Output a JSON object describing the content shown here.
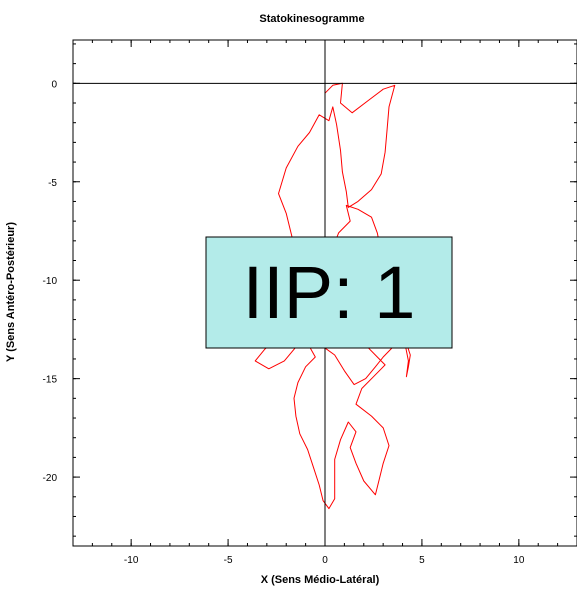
{
  "chart_data": {
    "type": "line",
    "title": "Statokinesogramme",
    "xlabel": "X (Sens Médio-Latéral)",
    "ylabel": "Y (Sens Antéro-Postérieur)",
    "xlim": [
      -13,
      13
    ],
    "ylim": [
      -23.5,
      2.2
    ],
    "xticks": [
      -10,
      -5,
      0,
      5,
      10
    ],
    "yticks": [
      0,
      -5,
      -10,
      -15,
      -20
    ],
    "grid": false,
    "crosshair": {
      "x": 0,
      "y": 0
    },
    "series": [
      {
        "color": "#ff0000",
        "points": [
          [
            0.0,
            -0.5
          ],
          [
            0.4,
            -0.1
          ],
          [
            0.9,
            0.0
          ],
          [
            0.8,
            -1.0
          ],
          [
            1.4,
            -1.5
          ],
          [
            2.2,
            -0.9
          ],
          [
            3.0,
            -0.3
          ],
          [
            3.6,
            -0.1
          ],
          [
            3.3,
            -1.2
          ],
          [
            3.2,
            -2.4
          ],
          [
            3.1,
            -3.5
          ],
          [
            2.9,
            -4.6
          ],
          [
            2.4,
            -5.4
          ],
          [
            1.7,
            -6.0
          ],
          [
            1.2,
            -6.3
          ],
          [
            1.1,
            -5.5
          ],
          [
            0.9,
            -4.5
          ],
          [
            0.8,
            -3.4
          ],
          [
            0.6,
            -2.1
          ],
          [
            0.4,
            -1.2
          ],
          [
            0.2,
            -1.9
          ],
          [
            -0.3,
            -1.6
          ],
          [
            -0.8,
            -2.5
          ],
          [
            -1.4,
            -3.2
          ],
          [
            -2.0,
            -4.3
          ],
          [
            -2.4,
            -5.6
          ],
          [
            -2.0,
            -6.6
          ],
          [
            -1.7,
            -7.8
          ],
          [
            -1.4,
            -8.8
          ],
          [
            -0.5,
            -9.3
          ],
          [
            0.3,
            -8.6
          ],
          [
            0.7,
            -7.6
          ],
          [
            1.3,
            -7.0
          ],
          [
            1.1,
            -6.2
          ],
          [
            1.7,
            -6.4
          ],
          [
            2.4,
            -6.8
          ],
          [
            2.7,
            -7.6
          ],
          [
            2.9,
            -8.6
          ],
          [
            3.3,
            -9.4
          ],
          [
            3.0,
            -10.2
          ],
          [
            2.6,
            -10.9
          ],
          [
            2.2,
            -11.3
          ],
          [
            1.9,
            -12.1
          ],
          [
            1.5,
            -12.8
          ],
          [
            2.1,
            -13.3
          ],
          [
            2.7,
            -13.9
          ],
          [
            3.1,
            -14.3
          ],
          [
            2.5,
            -14.9
          ],
          [
            1.9,
            -15.5
          ],
          [
            1.6,
            -16.3
          ],
          [
            2.4,
            -16.9
          ],
          [
            3.0,
            -17.5
          ],
          [
            3.3,
            -18.4
          ],
          [
            3.0,
            -19.3
          ],
          [
            2.8,
            -20.1
          ],
          [
            2.6,
            -20.9
          ],
          [
            2.0,
            -20.2
          ],
          [
            1.6,
            -19.3
          ],
          [
            1.3,
            -18.5
          ],
          [
            1.6,
            -17.7
          ],
          [
            1.2,
            -17.2
          ],
          [
            0.8,
            -18.1
          ],
          [
            0.5,
            -19.1
          ],
          [
            0.5,
            -20.3
          ],
          [
            0.5,
            -21.1
          ],
          [
            0.2,
            -21.6
          ],
          [
            -0.1,
            -21.2
          ],
          [
            -0.3,
            -20.4
          ],
          [
            -0.6,
            -19.5
          ],
          [
            -0.9,
            -18.6
          ],
          [
            -1.3,
            -17.8
          ],
          [
            -1.5,
            -16.9
          ],
          [
            -1.6,
            -16.0
          ],
          [
            -1.4,
            -15.2
          ],
          [
            -1.0,
            -14.4
          ],
          [
            -0.5,
            -13.9
          ],
          [
            -0.9,
            -13.2
          ],
          [
            -0.3,
            -12.8
          ],
          [
            -1.2,
            -12.4
          ],
          [
            -2.2,
            -12.7
          ],
          [
            -3.1,
            -13.5
          ],
          [
            -3.6,
            -14.1
          ],
          [
            -2.9,
            -14.5
          ],
          [
            -2.1,
            -14.1
          ],
          [
            -1.5,
            -13.4
          ],
          [
            -0.8,
            -12.9
          ],
          [
            -0.2,
            -13.3
          ],
          [
            0.5,
            -13.8
          ],
          [
            1.0,
            -14.6
          ],
          [
            1.5,
            -15.3
          ],
          [
            2.1,
            -15.0
          ],
          [
            2.6,
            -14.4
          ],
          [
            3.0,
            -13.9
          ],
          [
            3.5,
            -13.4
          ],
          [
            3.8,
            -12.6
          ],
          [
            4.2,
            -13.2
          ],
          [
            4.4,
            -13.8
          ],
          [
            4.3,
            -14.4
          ],
          [
            4.2,
            -14.9
          ],
          [
            4.3,
            -14.1
          ],
          [
            4.1,
            -13.1
          ],
          [
            3.6,
            -12.3
          ],
          [
            3.2,
            -11.5
          ],
          [
            3.5,
            -10.7
          ],
          [
            3.1,
            -9.9
          ],
          [
            2.7,
            -9.1
          ],
          [
            2.5,
            -8.4
          ],
          [
            2.9,
            -8.0
          ]
        ]
      }
    ]
  },
  "badge": {
    "text": "IIP: 1",
    "fill": "#b3ebe9",
    "border": "#000000"
  }
}
